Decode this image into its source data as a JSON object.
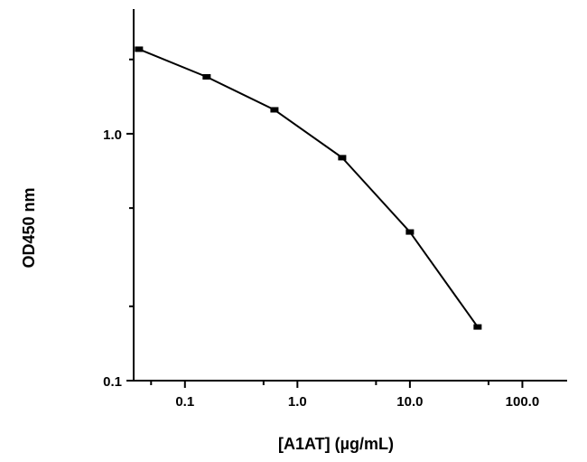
{
  "chart_data": {
    "type": "line",
    "title": "",
    "xlabel": "[A1AT] (µg/mL)",
    "ylabel": "OD450 nm",
    "x_scale": "log",
    "y_scale": "log",
    "xlim": [
      0.035,
      250
    ],
    "ylim": [
      0.1,
      3.2
    ],
    "x_ticks": [
      {
        "value": 0.1,
        "label": "0.1"
      },
      {
        "value": 1,
        "label": "1.0"
      },
      {
        "value": 10,
        "label": "10.0"
      },
      {
        "value": 100,
        "label": "100.0"
      }
    ],
    "y_ticks": [
      {
        "value": 0.1,
        "label": "0.1"
      },
      {
        "value": 1,
        "label": "1.0"
      }
    ],
    "series": [
      {
        "marker": "square",
        "color": "#000000",
        "x": [
          0.039,
          0.156,
          0.625,
          2.5,
          10,
          40
        ],
        "y": [
          2.2,
          1.7,
          1.25,
          0.8,
          0.4,
          0.165
        ]
      }
    ],
    "grid": false,
    "legend": "none"
  }
}
